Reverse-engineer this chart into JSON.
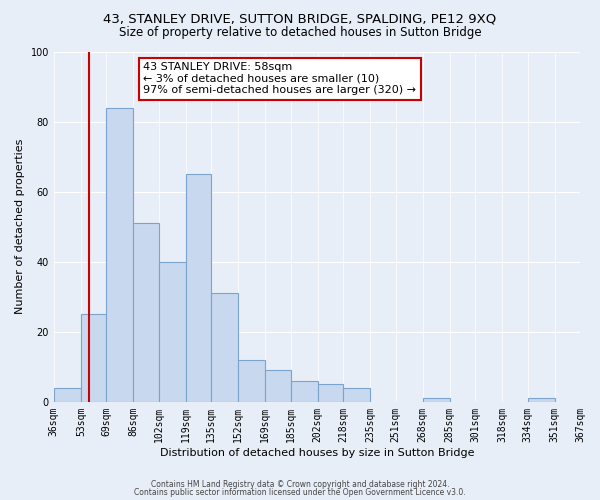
{
  "title": "43, STANLEY DRIVE, SUTTON BRIDGE, SPALDING, PE12 9XQ",
  "subtitle": "Size of property relative to detached houses in Sutton Bridge",
  "xlabel": "Distribution of detached houses by size in Sutton Bridge",
  "ylabel": "Number of detached properties",
  "bin_labels": [
    "36sqm",
    "53sqm",
    "69sqm",
    "86sqm",
    "102sqm",
    "119sqm",
    "135sqm",
    "152sqm",
    "169sqm",
    "185sqm",
    "202sqm",
    "218sqm",
    "235sqm",
    "251sqm",
    "268sqm",
    "285sqm",
    "301sqm",
    "318sqm",
    "334sqm",
    "351sqm",
    "367sqm"
  ],
  "bin_edges": [
    36,
    53,
    69,
    86,
    102,
    119,
    135,
    152,
    169,
    185,
    202,
    218,
    235,
    251,
    268,
    285,
    301,
    318,
    334,
    351,
    367
  ],
  "bar_heights": [
    4,
    25,
    84,
    51,
    40,
    65,
    31,
    12,
    9,
    6,
    5,
    4,
    0,
    0,
    1,
    0,
    0,
    0,
    1,
    0,
    0
  ],
  "bar_color": "#c8d8ef",
  "bar_edge_color": "#7aa4cc",
  "ylim": [
    0,
    100
  ],
  "yticks": [
    0,
    20,
    40,
    60,
    80,
    100
  ],
  "property_line_x": 58,
  "property_line_color": "#cc0000",
  "annotation_text": "43 STANLEY DRIVE: 58sqm\n← 3% of detached houses are smaller (10)\n97% of semi-detached houses are larger (320) →",
  "annotation_box_color": "#ffffff",
  "annotation_box_edge_color": "#cc0000",
  "footer_line1": "Contains HM Land Registry data © Crown copyright and database right 2024.",
  "footer_line2": "Contains public sector information licensed under the Open Government Licence v3.0.",
  "background_color": "#e8eef8",
  "plot_bg_color": "#e8eef8",
  "grid_color": "#ffffff",
  "title_fontsize": 9.5,
  "subtitle_fontsize": 8.5,
  "axis_label_fontsize": 8,
  "tick_fontsize": 7,
  "footer_fontsize": 5.5
}
